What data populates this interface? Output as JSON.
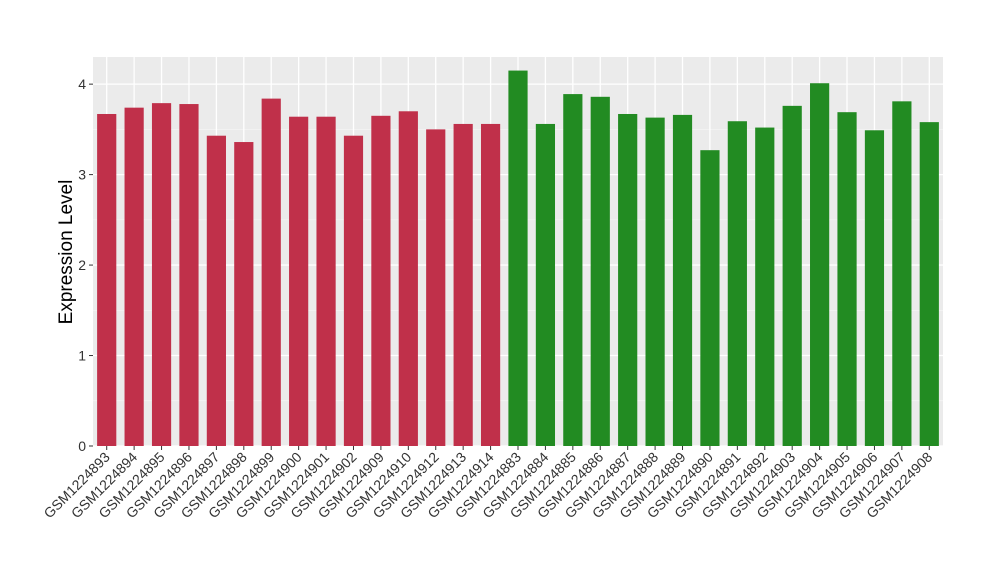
{
  "chart_data": {
    "type": "bar",
    "title": "",
    "xlabel": "",
    "ylabel": "Expression Level",
    "ylim": [
      0,
      4.3
    ],
    "yticks": [
      0,
      1,
      2,
      3,
      4
    ],
    "grid": true,
    "legend": "none",
    "categories": [
      "GSM1224893",
      "GSM1224894",
      "GSM1224895",
      "GSM1224896",
      "GSM1224897",
      "GSM1224898",
      "GSM1224899",
      "GSM1224900",
      "GSM1224901",
      "GSM1224902",
      "GSM1224909",
      "GSM1224910",
      "GSM1224912",
      "GSM1224913",
      "GSM1224914",
      "GSM1224883",
      "GSM1224884",
      "GSM1224885",
      "GSM1224886",
      "GSM1224887",
      "GSM1224888",
      "GSM1224889",
      "GSM1224890",
      "GSM1224891",
      "GSM1224892",
      "GSM1224903",
      "GSM1224904",
      "GSM1224905",
      "GSM1224906",
      "GSM1224907",
      "GSM1224908"
    ],
    "values": [
      3.67,
      3.74,
      3.79,
      3.78,
      3.43,
      3.36,
      3.84,
      3.64,
      3.64,
      3.43,
      3.65,
      3.7,
      3.5,
      3.56,
      3.56,
      4.15,
      3.56,
      3.89,
      3.86,
      3.67,
      3.63,
      3.66,
      3.27,
      3.59,
      3.52,
      3.76,
      4.01,
      3.69,
      3.49,
      3.81,
      3.58
    ],
    "bar_colors": [
      "#C0304A",
      "#C0304A",
      "#C0304A",
      "#C0304A",
      "#C0304A",
      "#C0304A",
      "#C0304A",
      "#C0304A",
      "#C0304A",
      "#C0304A",
      "#C0304A",
      "#C0304A",
      "#C0304A",
      "#C0304A",
      "#C0304A",
      "#228B22",
      "#228B22",
      "#228B22",
      "#228B22",
      "#228B22",
      "#228B22",
      "#228B22",
      "#228B22",
      "#228B22",
      "#228B22",
      "#228B22",
      "#228B22",
      "#228B22",
      "#228B22",
      "#228B22",
      "#228B22"
    ],
    "colors": {
      "panel_background": "#EBEBEB",
      "grid_major": "#FFFFFF",
      "grid_minor": "#F5F5F5",
      "tick_mark": "#333333"
    }
  }
}
